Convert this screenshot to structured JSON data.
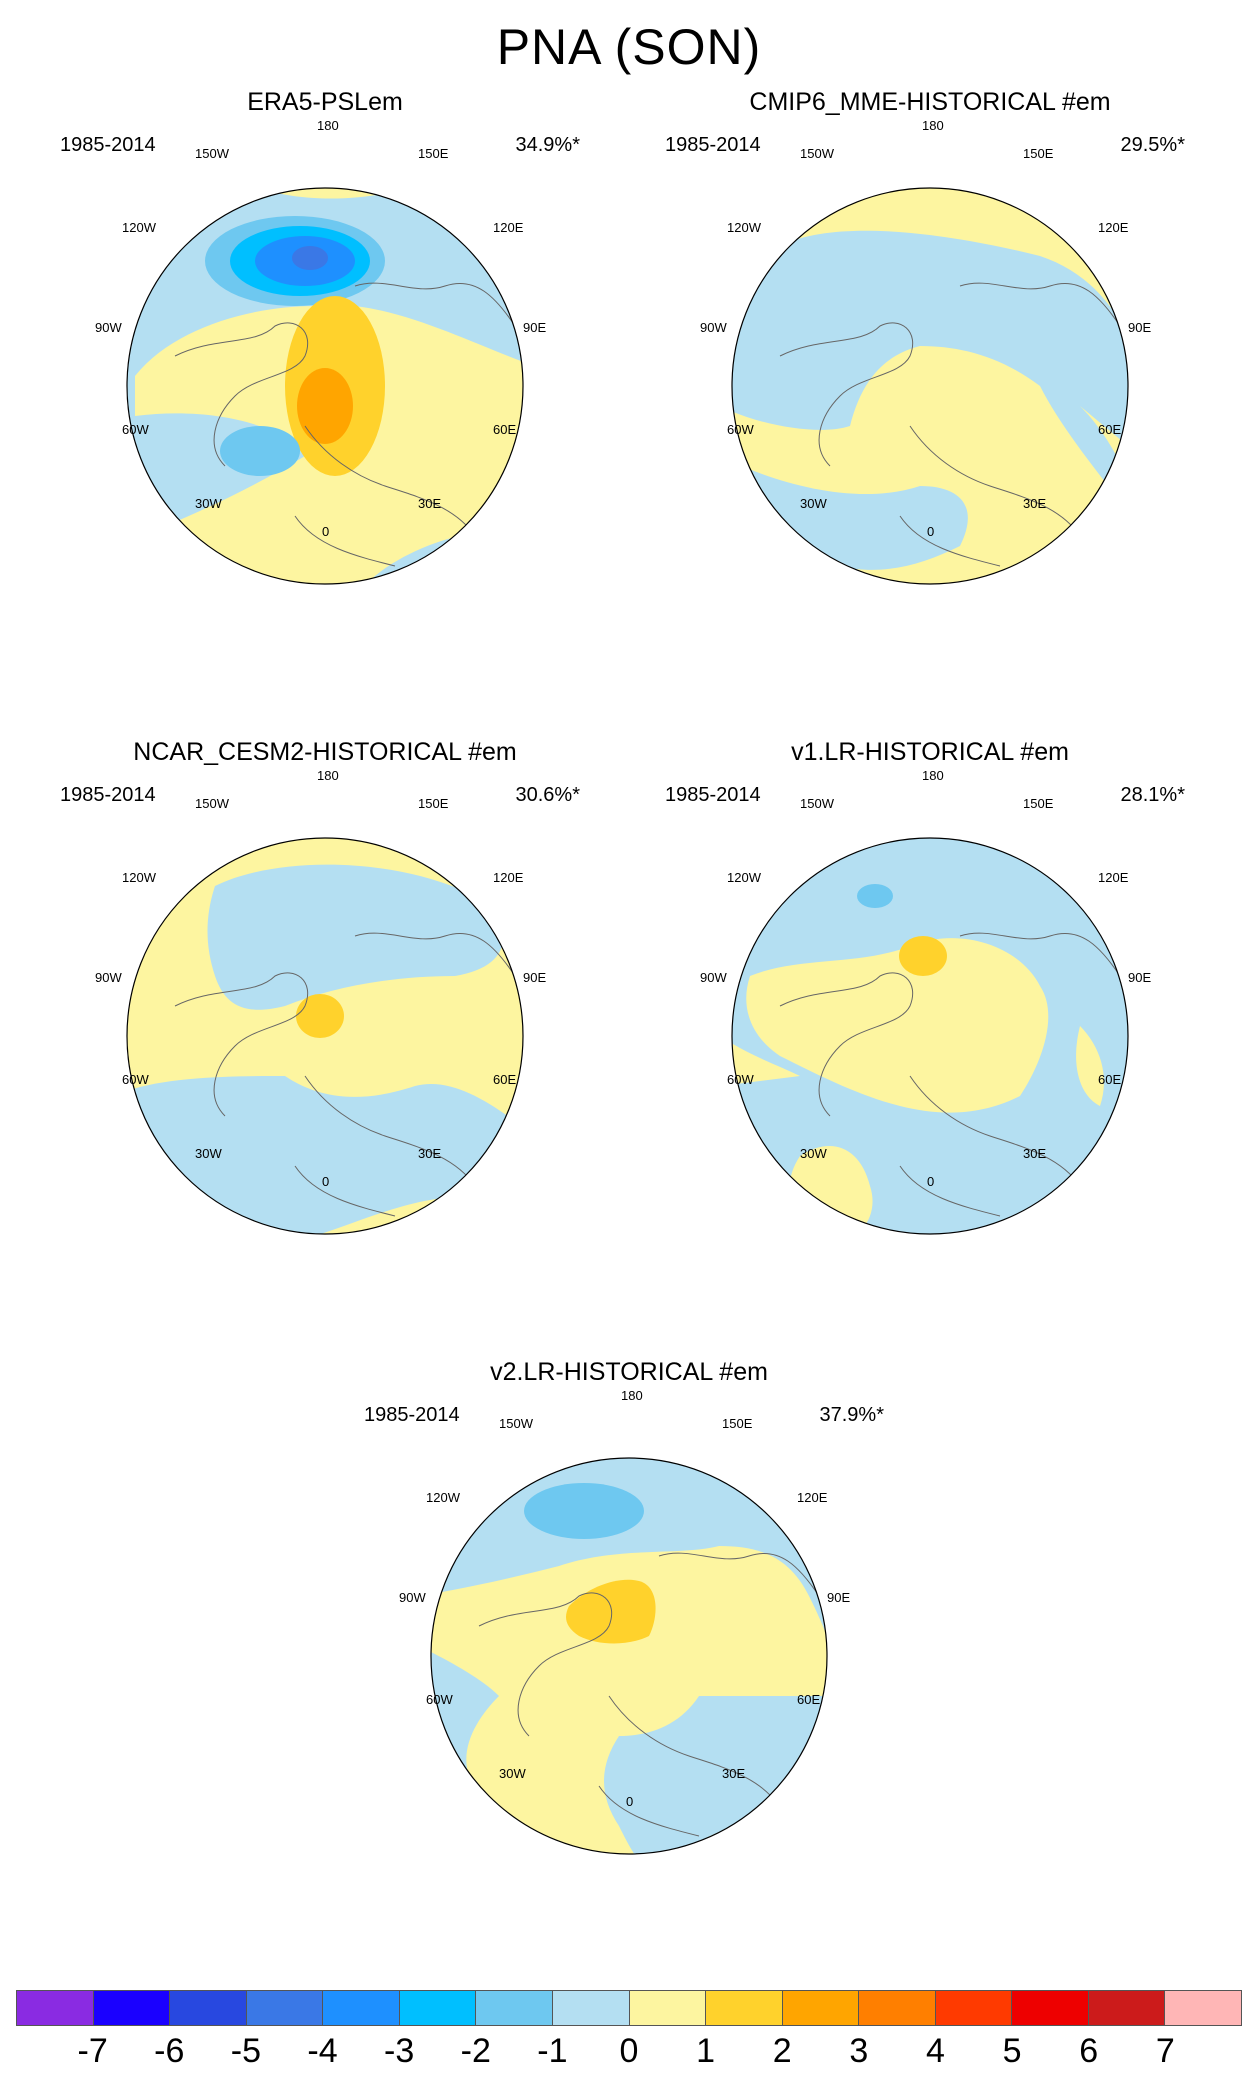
{
  "figure_title": "PNA (SON)",
  "chart_data": {
    "type": "heatmap",
    "projection": "north-polar-stereographic",
    "title": "PNA (SON)",
    "panels": [
      {
        "title": "ERA5-PSLem",
        "period": "1985-2014",
        "variance_explained": "34.9%*",
        "features": [
          {
            "region": "North Pacific / Aleutian",
            "sign": "negative",
            "min_value": -5
          },
          {
            "region": "Arctic / Canada",
            "sign": "positive",
            "max_value": 3
          },
          {
            "region": "western subtropical Atlantic",
            "sign": "negative",
            "min_value": -2
          }
        ]
      },
      {
        "title": "CMIP6_MME-HISTORICAL  #em",
        "period": "1985-2014",
        "variance_explained": "29.5%*",
        "features": [
          {
            "region": "North Pacific",
            "sign": "negative",
            "min_value": -1
          },
          {
            "region": "Arctic",
            "sign": "positive",
            "max_value": 1
          }
        ]
      },
      {
        "title": "NCAR_CESM2-HISTORICAL  #em",
        "period": "1985-2014",
        "variance_explained": "30.6%*",
        "features": [
          {
            "region": "North Pacific",
            "sign": "negative",
            "min_value": -1
          },
          {
            "region": "Arctic",
            "sign": "positive",
            "max_value": 2
          }
        ]
      },
      {
        "title": "v1.LR-HISTORICAL  #em",
        "period": "1985-2014",
        "variance_explained": "28.1%*",
        "features": [
          {
            "region": "North Pacific",
            "sign": "negative",
            "min_value": -2
          },
          {
            "region": "Arctic",
            "sign": "positive",
            "max_value": 2
          }
        ]
      },
      {
        "title": "v2.LR-HISTORICAL  #em",
        "period": "1985-2014",
        "variance_explained": "37.9%*",
        "features": [
          {
            "region": "North Pacific",
            "sign": "negative",
            "min_value": -2
          },
          {
            "region": "Arctic",
            "sign": "positive",
            "max_value": 2
          }
        ]
      }
    ],
    "longitude_labels": [
      "180",
      "150E",
      "120E",
      "90E",
      "60E",
      "30E",
      "0",
      "30W",
      "60W",
      "90W",
      "120W",
      "150W"
    ],
    "colorbar": {
      "levels": [
        -7,
        -6,
        -5,
        -4,
        -3,
        -2,
        -1,
        0,
        1,
        2,
        3,
        4,
        5,
        6,
        7
      ],
      "tick_labels": [
        "-7",
        "-6",
        "-5",
        "-4",
        "-3",
        "-2",
        "-1",
        "0",
        "1",
        "2",
        "3",
        "4",
        "5",
        "6",
        "7"
      ],
      "colors": [
        "#8a2be2",
        "#1a00ff",
        "#2848e0",
        "#3a78e6",
        "#1e90ff",
        "#00bfff",
        "#6ec8f0",
        "#b4dff2",
        "#fdf5a0",
        "#ffd22c",
        "#ffa500",
        "#ff7f00",
        "#ff3a00",
        "#ee0000",
        "#cc1b1b",
        "#ffb6b6"
      ]
    }
  }
}
